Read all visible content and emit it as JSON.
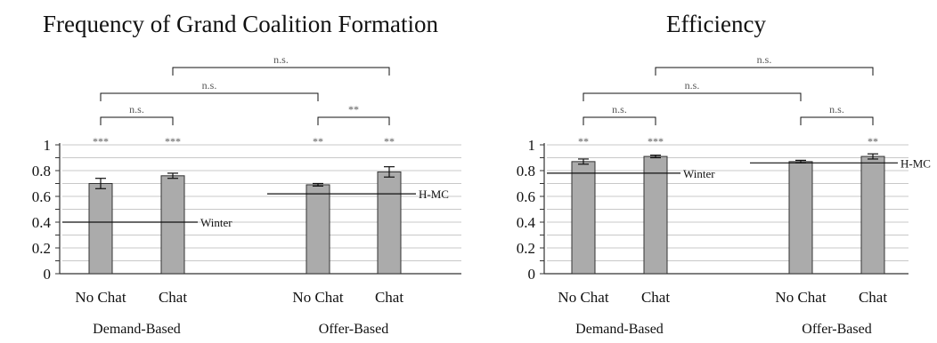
{
  "chart_data": [
    {
      "type": "bar",
      "title": "Frequency of Grand Coalition Formation",
      "groups": [
        "Demand-Based",
        "Offer-Based"
      ],
      "categories": [
        "No Chat",
        "Chat",
        "No Chat",
        "Chat"
      ],
      "values": [
        0.7,
        0.76,
        0.69,
        0.79
      ],
      "errors": [
        0.04,
        0.02,
        0.01,
        0.04
      ],
      "significance": [
        "***",
        "***",
        "**",
        "**"
      ],
      "ylim": [
        0,
        1
      ],
      "yticks": [
        "0",
        "0.2",
        "0.4",
        "0.6",
        "0.8",
        "1"
      ],
      "grid": true,
      "reference_lines": [
        {
          "label": "Winter",
          "value": 0.4,
          "group": "Demand-Based"
        },
        {
          "label": "H-MC",
          "value": 0.62,
          "group": "Offer-Based"
        }
      ],
      "comparisons": [
        {
          "from": 0,
          "to": 1,
          "label": "n.s."
        },
        {
          "from": 2,
          "to": 3,
          "label": "**"
        },
        {
          "from": 0,
          "to": 2,
          "label": "n.s."
        },
        {
          "from": 1,
          "to": 3,
          "label": "n.s."
        }
      ]
    },
    {
      "type": "bar",
      "title": "Efficiency",
      "groups": [
        "Demand-Based",
        "Offer-Based"
      ],
      "categories": [
        "No Chat",
        "Chat",
        "No Chat",
        "Chat"
      ],
      "values": [
        0.87,
        0.91,
        0.87,
        0.91
      ],
      "errors": [
        0.02,
        0.01,
        0.01,
        0.02
      ],
      "significance": [
        "**",
        "***",
        "",
        "**"
      ],
      "ylim": [
        0,
        1
      ],
      "yticks": [
        "0",
        "0.2",
        "0.4",
        "0.6",
        "0.8",
        "1"
      ],
      "grid": true,
      "reference_lines": [
        {
          "label": "Winter",
          "value": 0.78,
          "group": "Demand-Based"
        },
        {
          "label": "H-MC",
          "value": 0.86,
          "group": "Offer-Based"
        }
      ],
      "comparisons": [
        {
          "from": 0,
          "to": 1,
          "label": "n.s."
        },
        {
          "from": 2,
          "to": 3,
          "label": "n.s."
        },
        {
          "from": 0,
          "to": 2,
          "label": "n.s."
        },
        {
          "from": 1,
          "to": 3,
          "label": "n.s."
        }
      ]
    }
  ]
}
